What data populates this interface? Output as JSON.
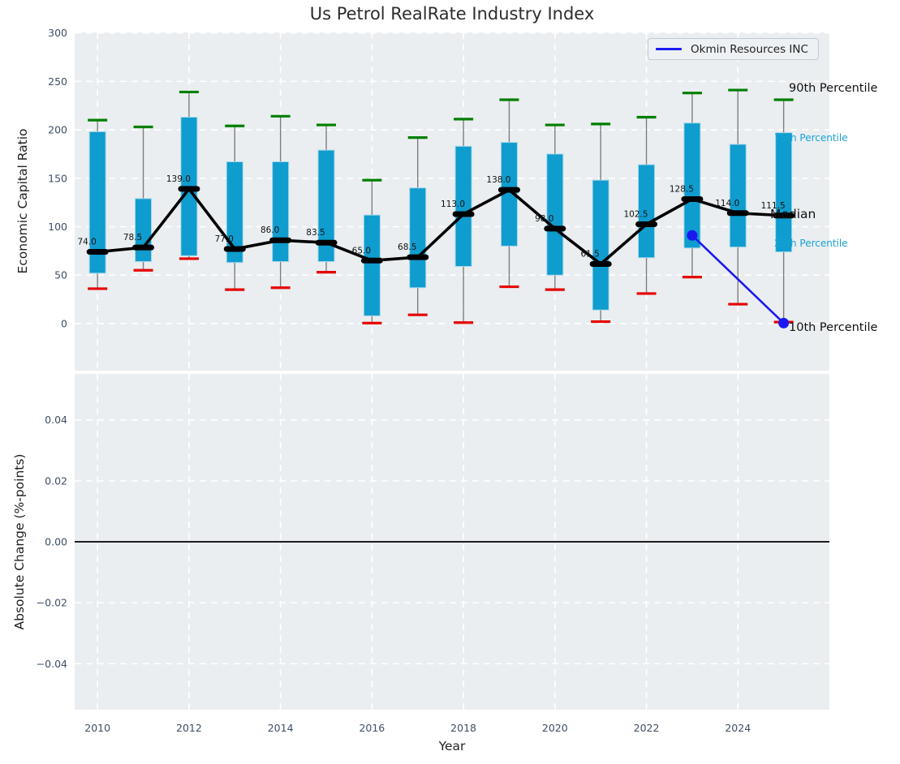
{
  "figure": {
    "title": "Us Petrol RealRate Industry Index",
    "xlabel": "Year",
    "legend_label": "Okmin Resources INC"
  },
  "annotations": {
    "p90": {
      "text": "90th Percentile",
      "color": "#111111"
    },
    "p75": {
      "text": "75th Percentile",
      "color": "#18a2d4"
    },
    "median": {
      "text": "Median",
      "color": "#111111"
    },
    "p25": {
      "text": "25th Percentile",
      "color": "#18a2d4"
    },
    "p10": {
      "text": "10th Percentile",
      "color": "#111111"
    }
  },
  "colors": {
    "plot_bg": "#eaeef1",
    "grid": "#ffffff",
    "box_fill": "#0f9cce",
    "box_edge": "#a3d6ea",
    "p90_cap": "#007f00",
    "p10_cap": "#e60000",
    "whisker": "#7e7e7e",
    "median_line": "#000000",
    "company_line": "#1a1af0",
    "tick_text": "#3f4e66",
    "cyan_text": "#18a2d4"
  },
  "chart_data": [
    {
      "type": "boxplot+line",
      "title": "Us Petrol RealRate Industry Index",
      "xlabel": "Year",
      "ylabel": "Economic Capital Ratio",
      "grid": "white dashed, on",
      "legend_position": "upper right",
      "x": [
        2010,
        2011,
        2012,
        2013,
        2014,
        2015,
        2016,
        2017,
        2018,
        2019,
        2020,
        2021,
        2022,
        2023,
        2024,
        2025
      ],
      "xticks": [
        2010,
        2012,
        2014,
        2016,
        2018,
        2020,
        2022,
        2024
      ],
      "yticks": [
        0,
        50,
        100,
        150,
        200,
        250,
        300
      ],
      "ytick_labels": [
        "0",
        "50",
        "100",
        "150",
        "200",
        "250",
        "300"
      ],
      "xlim": [
        2009.5,
        2026.0
      ],
      "ylim": [
        -48.6,
        300.5
      ],
      "series": {
        "p90": [
          210,
          203,
          239,
          204,
          214,
          205,
          148,
          192,
          211,
          231,
          205,
          206,
          213,
          238,
          241,
          231
        ],
        "q3": [
          198,
          129,
          213,
          167,
          167,
          179,
          112,
          140,
          183,
          187,
          175,
          148,
          164,
          207,
          185,
          197
        ],
        "median": [
          74,
          78.5,
          139,
          77,
          86,
          83.5,
          65,
          68.5,
          113,
          138,
          98,
          61.5,
          102.5,
          128.5,
          114,
          111.5
        ],
        "q1": [
          52,
          64,
          70,
          63,
          64,
          64,
          8,
          37,
          59,
          80,
          50,
          14,
          68,
          78,
          79,
          74
        ],
        "p10": [
          36,
          55,
          67,
          35,
          37,
          53,
          0.5,
          9,
          1,
          38,
          35,
          2,
          31,
          48,
          20,
          1.5
        ]
      },
      "median_labels": [
        "74.0",
        "78.5",
        "139.0",
        "77.0",
        "86.0",
        "83.5",
        "65.0",
        "68.5",
        "113.0",
        "138.0",
        "98.0",
        "61.5",
        "102.5",
        "128.5",
        "114.0",
        "111.5"
      ],
      "company_line": {
        "name": "Okmin Resources INC",
        "x": [
          2023,
          2025
        ],
        "y": [
          91,
          0.5
        ]
      }
    },
    {
      "type": "line",
      "ylabel": "Absolute Change (%-points)",
      "yticks": [
        0.04,
        0.02,
        0.0,
        -0.02,
        -0.04
      ],
      "ytick_labels": [
        "0.04",
        "0.02",
        "0.00",
        "−0.02",
        "−0.04"
      ],
      "ylim": [
        -0.0551,
        0.0551
      ],
      "hline": 0.0,
      "grid": "white dashed, on",
      "series": []
    }
  ]
}
